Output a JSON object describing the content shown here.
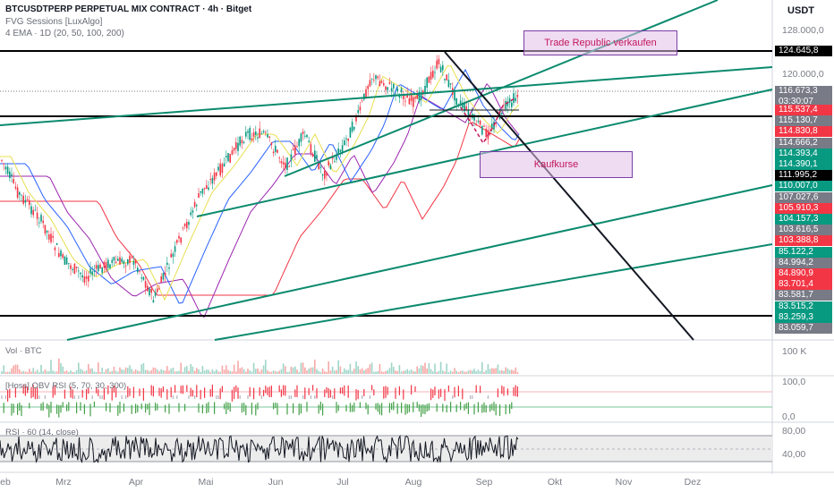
{
  "header": {
    "symbol_line": "BTCUSDTPERP PERPETUAL MIX CONTRACT · 4h · Bitget",
    "indicator_1": "FVG Sessions [LuxAlgo]",
    "indicator_2": "4 EMA · 1D (20, 50, 100, 200)",
    "currency": "USDT"
  },
  "price_axis": {
    "labels": [
      "128.000,0",
      "120.000,0"
    ],
    "current_price": "116.673,3",
    "countdown": "03:30:07",
    "tags": [
      {
        "value": "124.645,8",
        "color": "#000000"
      },
      {
        "value": "115.537,4",
        "color": "#f23645"
      },
      {
        "value": "115.130,7",
        "color": "#787b86"
      },
      {
        "value": "114.830,8",
        "color": "#f23645"
      },
      {
        "value": "114.666,2",
        "color": "#787b86"
      },
      {
        "value": "114.393,4",
        "color": "#089981"
      },
      {
        "value": "114.390,1",
        "color": "#089981"
      },
      {
        "value": "111.995,2",
        "color": "#000000"
      },
      {
        "value": "110.007,0",
        "color": "#089981"
      },
      {
        "value": "107.027,6",
        "color": "#787b86"
      },
      {
        "value": "105.910,3",
        "color": "#f23645"
      },
      {
        "value": "104.157,3",
        "color": "#089981"
      },
      {
        "value": "103.616,5",
        "color": "#787b86"
      },
      {
        "value": "103.388,8",
        "color": "#f23645"
      },
      {
        "value": "85.122,2",
        "color": "#089981"
      },
      {
        "value": "84.994,2",
        "color": "#787b86"
      },
      {
        "value": "84.890,9",
        "color": "#f23645"
      },
      {
        "value": "83.701,4",
        "color": "#f23645"
      },
      {
        "value": "83.581,7",
        "color": "#787b86"
      },
      {
        "value": "83.515,2",
        "color": "#089981"
      },
      {
        "value": "83.259,3",
        "color": "#089981"
      },
      {
        "value": "83.059,7",
        "color": "#787b86"
      }
    ]
  },
  "annotations": {
    "trade_republic": "Trade Republic verkaufen",
    "kaufkurse": "Kaufkurse"
  },
  "volume_pane": {
    "title": "Vol · BTC",
    "axis_label": "100 K"
  },
  "obv_pane": {
    "title": "[Hoss] OBV RSI (5, 70, 30, 300)",
    "axis_labels": [
      "100,0",
      "0,0"
    ]
  },
  "rsi_pane": {
    "title": "RSI · 60 (14, close)",
    "axis_labels": [
      "80,00",
      "40,00"
    ]
  },
  "x_axis": {
    "labels": [
      "eb",
      "Mrz",
      "Apr",
      "Mai",
      "Jun",
      "Jul",
      "Aug",
      "Sep",
      "Okt",
      "Nov",
      "Dez"
    ]
  },
  "colors": {
    "up": "#089981",
    "down": "#f23645",
    "trendline": "#0b8a6e",
    "horizontal": "#000000",
    "ema20": "#f2e85c",
    "ema50": "#2962ff",
    "ema100": "#9c27b0",
    "ema200": "#f23645"
  }
}
